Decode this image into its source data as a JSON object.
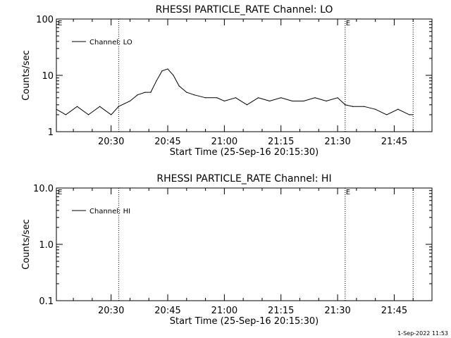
{
  "chart_data": [
    {
      "type": "line",
      "title": "RHESSI PARTICLE_RATE Channel: LO",
      "xlabel": "Start Time (25-Sep-16 20:15:30)",
      "ylabel": "Counts/sec",
      "yscale": "log",
      "ylim": [
        1,
        100
      ],
      "yticks": [
        1,
        10,
        100
      ],
      "ytick_labels": [
        "1",
        "10",
        "100"
      ],
      "xlim": [
        "20:15:30",
        "21:55:00"
      ],
      "xticks": [
        "20:30",
        "20:45",
        "21:00",
        "21:15",
        "21:30",
        "21:45"
      ],
      "legend": {
        "position": "top-left",
        "entries": [
          "Channel: LO"
        ]
      },
      "markers": [
        {
          "time": "20:32:00",
          "label": ""
        },
        {
          "time": "21:32:00",
          "label": "E"
        },
        {
          "time": "21:50:00",
          "label": ""
        }
      ],
      "corner_label": "E",
      "series": [
        {
          "name": "Channel: LO",
          "x": [
            "20:15:30",
            "20:18:00",
            "20:21:00",
            "20:24:00",
            "20:27:00",
            "20:30:00",
            "20:32:00",
            "20:35:00",
            "20:37:00",
            "20:39:00",
            "20:40:30",
            "20:42:00",
            "20:43:30",
            "20:45:00",
            "20:46:30",
            "20:48:00",
            "20:50:00",
            "20:52:00",
            "20:55:00",
            "20:58:00",
            "21:00:00",
            "21:03:00",
            "21:06:00",
            "21:09:00",
            "21:12:00",
            "21:15:00",
            "21:18:00",
            "21:21:00",
            "21:24:00",
            "21:27:00",
            "21:30:00",
            "21:32:00",
            "21:34:00",
            "21:37:00",
            "21:40:00",
            "21:43:00",
            "21:46:00",
            "21:49:00",
            "21:50:00"
          ],
          "y": [
            2.5,
            2.0,
            2.8,
            2.0,
            2.8,
            2.0,
            2.8,
            3.5,
            4.5,
            5.0,
            5.0,
            8.0,
            12,
            13,
            10,
            6.5,
            5.0,
            4.5,
            4.0,
            4.0,
            3.5,
            4.0,
            3.0,
            4.0,
            3.5,
            4.0,
            3.5,
            3.5,
            4.0,
            3.5,
            4.0,
            3.0,
            2.8,
            2.8,
            2.5,
            2.0,
            2.5,
            2.0,
            2.0
          ]
        }
      ]
    },
    {
      "type": "line",
      "title": "RHESSI PARTICLE_RATE Channel: HI",
      "xlabel": "Start Time (25-Sep-16 20:15:30)",
      "ylabel": "Counts/sec",
      "yscale": "log",
      "ylim": [
        0.1,
        10
      ],
      "yticks": [
        0.1,
        1,
        10
      ],
      "ytick_labels": [
        "0.1",
        "1.0",
        "10.0"
      ],
      "xlim": [
        "20:15:30",
        "21:55:00"
      ],
      "xticks": [
        "20:30",
        "20:45",
        "21:00",
        "21:15",
        "21:30",
        "21:45"
      ],
      "legend": {
        "position": "top-left",
        "entries": [
          "Channel: HI"
        ]
      },
      "markers": [
        {
          "time": "20:32:00",
          "label": ""
        },
        {
          "time": "21:32:00",
          "label": "E"
        },
        {
          "time": "21:50:00",
          "label": ""
        }
      ],
      "corner_label": "E",
      "series": [
        {
          "name": "Channel: HI",
          "x": [],
          "y": []
        }
      ]
    }
  ],
  "footer": {
    "timestamp": "1-Sep-2022 11:53"
  }
}
